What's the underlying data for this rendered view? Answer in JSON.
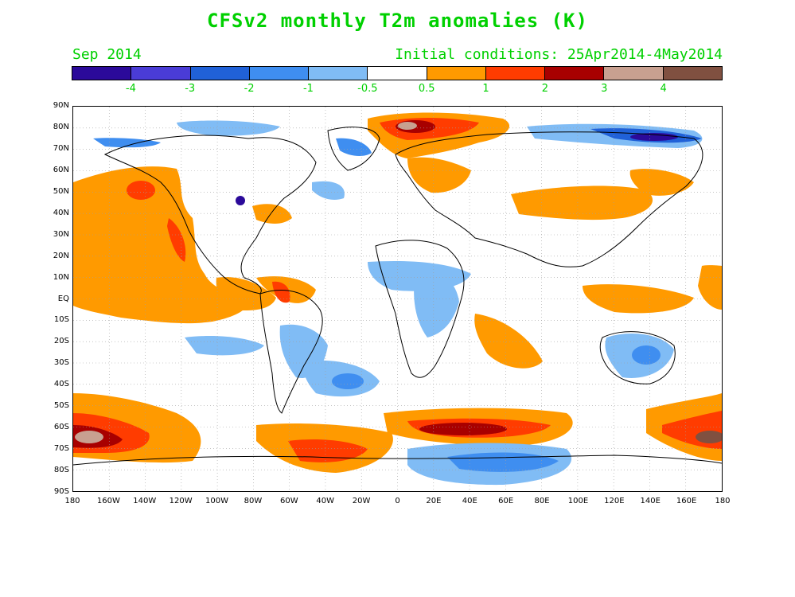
{
  "header": {
    "title": "CFSv2 monthly T2m anomalies (K)",
    "month": "Sep 2014",
    "initial_conditions": "Initial conditions: 25Apr2014-4May2014"
  },
  "colorbar": {
    "colors": [
      "#2b0a9a",
      "#4a3cd6",
      "#2061d8",
      "#3f8ef0",
      "#80bcf5",
      "#ffffff",
      "#ff9a00",
      "#ff3c00",
      "#a80000",
      "#c8a090",
      "#805040"
    ],
    "labels": [
      "-4",
      "-3",
      "-2",
      "-1",
      "-0.5",
      "0.5",
      "1",
      "2",
      "3",
      "4"
    ]
  },
  "axes": {
    "lat_labels": [
      "90N",
      "80N",
      "70N",
      "60N",
      "50N",
      "40N",
      "30N",
      "20N",
      "10N",
      "EQ",
      "10S",
      "20S",
      "30S",
      "40S",
      "50S",
      "60S",
      "70S",
      "80S",
      "90S"
    ],
    "lon_labels": [
      "180",
      "160W",
      "140W",
      "120W",
      "100W",
      "80W",
      "60W",
      "40W",
      "20W",
      "0",
      "20E",
      "40E",
      "60E",
      "80E",
      "100E",
      "120E",
      "140E",
      "160E",
      "180"
    ]
  }
}
